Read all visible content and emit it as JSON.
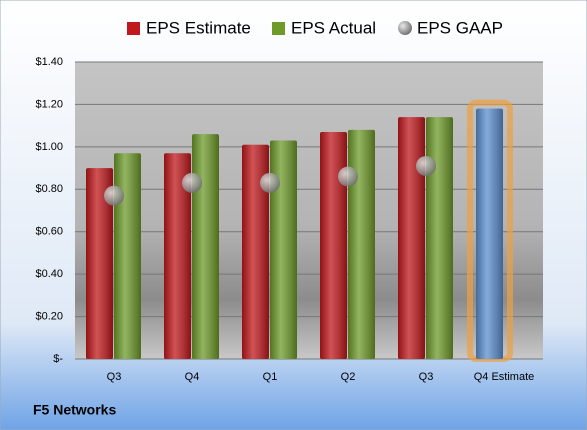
{
  "chart_data": {
    "type": "bar",
    "categories": [
      "Q3",
      "Q4",
      "Q1",
      "Q2",
      "Q3",
      "Q4 Estimate"
    ],
    "series": [
      {
        "name": "EPS Estimate",
        "kind": "bar",
        "color": "#c0181c",
        "colors": [
          "#c0181c",
          "#c0181c",
          "#c0181c",
          "#c0181c",
          "#c0181c",
          "#5b8fd0"
        ],
        "values": [
          0.9,
          0.97,
          1.01,
          1.07,
          1.14,
          1.18
        ]
      },
      {
        "name": "EPS Actual",
        "kind": "bar",
        "color": "#6e9a2a",
        "values": [
          0.97,
          1.06,
          1.03,
          1.08,
          1.14,
          null
        ]
      },
      {
        "name": "EPS GAAP",
        "kind": "scatter",
        "color": "#8f8f8f",
        "values": [
          0.77,
          0.83,
          0.83,
          0.86,
          0.91,
          null
        ]
      }
    ],
    "ylim": [
      0,
      1.4
    ],
    "yticks": [
      {
        "value": 0,
        "label": "$-"
      },
      {
        "value": 0.2,
        "label": "$0.20"
      },
      {
        "value": 0.4,
        "label": "$0.40"
      },
      {
        "value": 0.6,
        "label": "$0.60"
      },
      {
        "value": 0.8,
        "label": "$0.80"
      },
      {
        "value": 1.0,
        "label": "$1.00"
      },
      {
        "value": 1.2,
        "label": "$1.20"
      },
      {
        "value": 1.4,
        "label": "$1.40"
      }
    ],
    "grid": true,
    "caption": "F5 Networks"
  }
}
